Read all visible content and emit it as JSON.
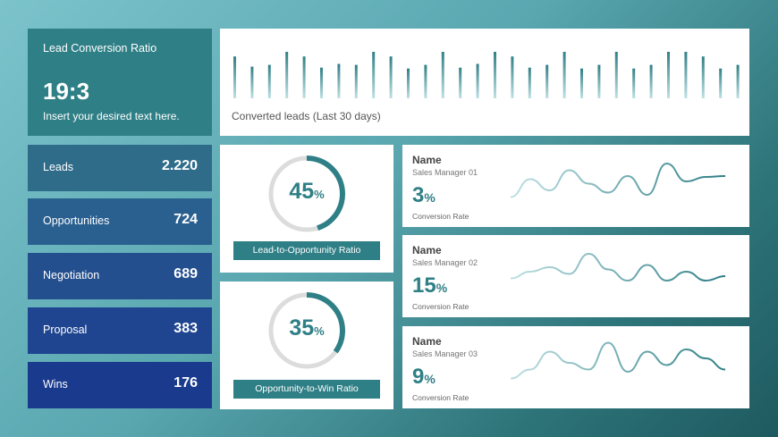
{
  "kpi": {
    "title": "Lead Conversion Ratio",
    "value": "19:3",
    "subtitle": "Insert your desired text here."
  },
  "bar_chart": {
    "label": "Converted leads (Last 30 days)",
    "color": "#2f7f86",
    "chart_data": {
      "type": "bar",
      "values": [
        45,
        34,
        36,
        50,
        45,
        33,
        37,
        36,
        50,
        45,
        32,
        36,
        50,
        33,
        37,
        50,
        45,
        33,
        36,
        50,
        32,
        36,
        50,
        32,
        36,
        50,
        50,
        45,
        32,
        36
      ]
    }
  },
  "funnel": [
    {
      "label": "Leads",
      "value": "2.220",
      "color": "#2f6c8a"
    },
    {
      "label": "Opportunities",
      "value": "724",
      "color": "#2a6090"
    },
    {
      "label": "Negotiation",
      "value": "689",
      "color": "#244f8e"
    },
    {
      "label": "Proposal",
      "value": "383",
      "color": "#1f4490"
    },
    {
      "label": "Wins",
      "value": "176",
      "color": "#1a3a8d"
    }
  ],
  "donuts": [
    {
      "pct": 45,
      "pct_label": "45",
      "unit": "%",
      "label": "Lead-to-Opportunity  Ratio"
    },
    {
      "pct": 35,
      "pct_label": "35",
      "unit": "%",
      "label": "Opportunity-to-Win  Ratio"
    }
  ],
  "managers": [
    {
      "name": "Name",
      "role": "Sales Manager 01",
      "rate": "3",
      "unit": "%",
      "caption": "Conversion Rate",
      "trend": [
        0.15,
        0.55,
        0.3,
        0.75,
        0.45,
        0.25,
        0.62,
        0.2,
        0.9,
        0.5,
        0.6,
        0.62
      ]
    },
    {
      "name": "Name",
      "role": "Sales Manager 02",
      "rate": "15",
      "unit": "%",
      "caption": "Conversion Rate",
      "trend": [
        0.35,
        0.5,
        0.6,
        0.45,
        0.9,
        0.55,
        0.3,
        0.65,
        0.3,
        0.5,
        0.3,
        0.4
      ]
    },
    {
      "name": "Name",
      "role": "Sales Manager 03",
      "rate": "9",
      "unit": "%",
      "caption": "Conversion Rate",
      "trend": [
        0.15,
        0.35,
        0.75,
        0.5,
        0.35,
        0.95,
        0.3,
        0.75,
        0.45,
        0.8,
        0.6,
        0.35
      ]
    }
  ]
}
